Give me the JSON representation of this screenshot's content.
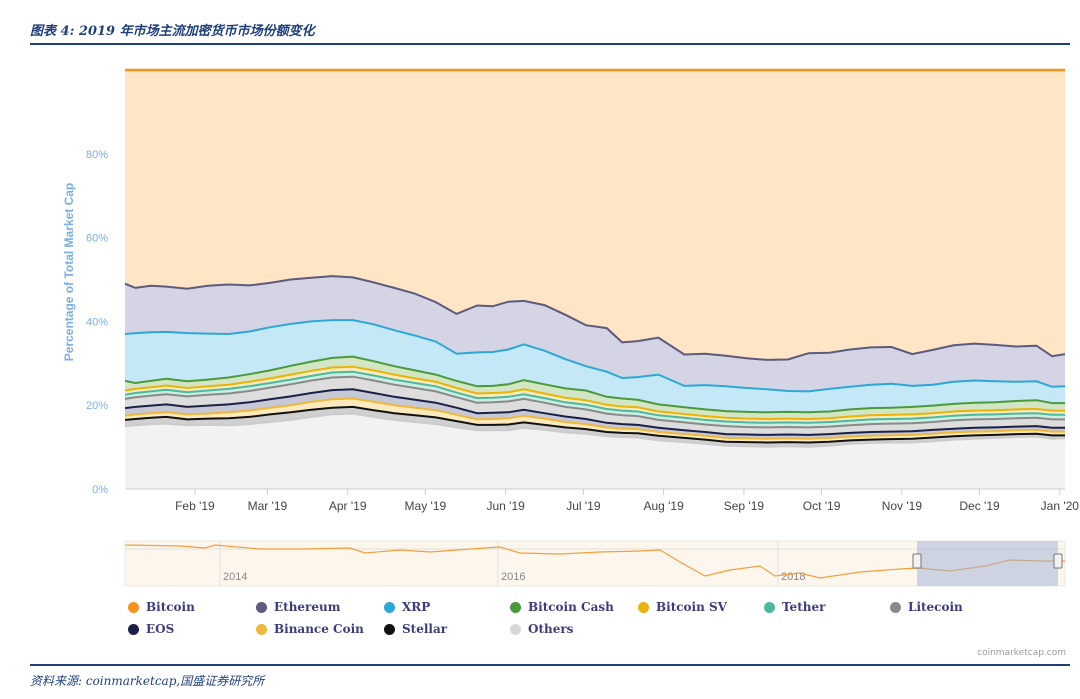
{
  "figure": {
    "title": "图表 4: 2019 年市场主流加密货币市场份额变化",
    "source": "资料来源: coinmarketcap,国盛证券研究所",
    "credit": "coinmarketcap.com"
  },
  "chart_data": {
    "type": "area",
    "stacking": "percent",
    "ylabel": "Percentage of Total Market Cap",
    "ylim": [
      0,
      100
    ],
    "y_ticks": [
      "0%",
      "20%",
      "40%",
      "60%",
      "80%"
    ],
    "y_tick_values": [
      0,
      20,
      40,
      60,
      80
    ],
    "x_ticks": [
      "Feb '19",
      "Mar '19",
      "Apr '19",
      "May '19",
      "Jun '19",
      "Jul '19",
      "Aug '19",
      "Sep '19",
      "Oct '19",
      "Nov '19",
      "Dec '19",
      "Jan '20"
    ],
    "x_tick_days": [
      31,
      59,
      90,
      120,
      151,
      181,
      212,
      243,
      273,
      304,
      334,
      365
    ],
    "x_range_days": [
      4,
      367
    ],
    "grid": "horizontal",
    "legend_position": "bottom",
    "cumulative_top_percent": {
      "x_days": [
        4,
        8,
        14,
        20,
        28,
        36,
        44,
        52,
        60,
        68,
        76,
        84,
        92,
        100,
        108,
        116,
        124,
        132,
        140,
        146,
        152,
        158,
        166,
        174,
        182,
        190,
        196,
        202,
        210,
        220,
        228,
        236,
        244,
        252,
        260,
        268,
        276,
        284,
        292,
        300,
        308,
        316,
        324,
        332,
        340,
        348,
        356,
        362,
        367
      ],
      "Others": [
        15,
        15.2,
        15.5,
        15.6,
        15.2,
        15.3,
        15.2,
        15.5,
        16,
        16.5,
        17.2,
        17.8,
        18,
        17.2,
        16.5,
        16,
        15.5,
        14.7,
        14,
        14,
        14,
        14.6,
        14.1,
        13.5,
        13.2,
        12.6,
        12.4,
        12.3,
        11.6,
        11.2,
        10.8,
        10.3,
        10.2,
        10.1,
        10.2,
        10.1,
        10.3,
        10.8,
        11,
        11.1,
        11.1,
        11.4,
        11.8,
        12,
        12.2,
        12.4,
        12.5,
        12,
        12.1
      ],
      "Stellar": [
        16.5,
        16.7,
        17,
        17.2,
        16.6,
        16.8,
        16.9,
        17.2,
        17.8,
        18.3,
        18.9,
        19.4,
        19.6,
        18.8,
        18.1,
        17.6,
        17.1,
        16.2,
        15.3,
        15.3,
        15.4,
        15.9,
        15.3,
        14.7,
        14.3,
        13.6,
        13.4,
        13.3,
        12.7,
        12.2,
        11.8,
        11.3,
        11.2,
        11.1,
        11.2,
        11.1,
        11.3,
        11.6,
        11.8,
        11.9,
        12,
        12.3,
        12.6,
        12.8,
        12.9,
        13.1,
        13.2,
        12.8,
        12.8
      ],
      "Binance Coin": [
        17.5,
        17.8,
        18.1,
        18.3,
        17.8,
        18,
        18.3,
        18.7,
        19.4,
        20,
        20.8,
        21.4,
        21.6,
        20.8,
        20,
        19.4,
        18.8,
        17.7,
        16.6,
        16.7,
        16.9,
        17.5,
        16.8,
        16,
        15.5,
        14.7,
        14.4,
        14.3,
        13.6,
        13.1,
        12.7,
        12.2,
        12.1,
        12,
        12.1,
        12,
        12.2,
        12.5,
        12.7,
        12.8,
        12.9,
        13.2,
        13.5,
        13.7,
        13.8,
        14,
        14.1,
        13.7,
        13.7
      ],
      "EOS": [
        19.3,
        19.6,
        19.9,
        20.2,
        19.6,
        19.9,
        20.2,
        20.7,
        21.4,
        22.1,
        22.9,
        23.6,
        23.8,
        22.9,
        22,
        21.3,
        20.6,
        19.4,
        18.1,
        18.2,
        18.3,
        18.9,
        18.1,
        17.3,
        16.7,
        15.8,
        15.5,
        15.3,
        14.6,
        14,
        13.6,
        13.1,
        13,
        12.9,
        13,
        12.9,
        13.1,
        13.4,
        13.6,
        13.7,
        13.8,
        14.1,
        14.4,
        14.6,
        14.7,
        14.9,
        15,
        14.6,
        14.6
      ],
      "Litecoin": [
        21.5,
        21.9,
        22.3,
        22.6,
        22.1,
        22.5,
        22.8,
        23.4,
        24.2,
        25,
        25.9,
        26.6,
        26.8,
        25.9,
        24.9,
        24.1,
        23.3,
        21.9,
        20.6,
        20.7,
        20.9,
        21.5,
        20.6,
        19.6,
        19,
        18,
        17.6,
        17.4,
        16.5,
        15.9,
        15.4,
        15,
        14.8,
        14.7,
        14.8,
        14.7,
        14.9,
        15.2,
        15.5,
        15.6,
        15.7,
        16,
        16.4,
        16.6,
        16.7,
        16.9,
        17,
        16.6,
        16.6
      ],
      "Tether": [
        22.5,
        22.9,
        23.3,
        23.7,
        23.1,
        23.5,
        23.9,
        24.5,
        25.3,
        26.1,
        27,
        27.8,
        28,
        27.1,
        26.1,
        25.3,
        24.5,
        23,
        21.7,
        21.8,
        22,
        22.6,
        21.7,
        20.7,
        20.1,
        19.1,
        18.7,
        18.5,
        17.6,
        17,
        16.5,
        16.1,
        15.9,
        15.8,
        15.9,
        15.8,
        16,
        16.3,
        16.6,
        16.7,
        16.8,
        17.1,
        17.5,
        17.7,
        17.8,
        18,
        18.1,
        17.7,
        17.7
      ],
      "Bitcoin SV": [
        23.5,
        23.9,
        24.3,
        24.7,
        24.1,
        24.5,
        24.9,
        25.6,
        26.4,
        27.3,
        28.2,
        29,
        29.2,
        28.3,
        27.3,
        26.4,
        25.6,
        24.1,
        22.8,
        22.9,
        23.1,
        23.8,
        22.8,
        21.8,
        21.2,
        20.1,
        19.7,
        19.5,
        18.5,
        17.9,
        17.4,
        17,
        16.8,
        16.7,
        16.8,
        16.7,
        16.9,
        17.3,
        17.6,
        17.7,
        17.8,
        18.1,
        18.5,
        18.7,
        18.8,
        19,
        19.1,
        18.7,
        18.7
      ],
      "Bitcoin Cash": [
        25.8,
        25.3,
        25.8,
        26.3,
        25.7,
        26.1,
        26.6,
        27.4,
        28.3,
        29.4,
        30.4,
        31.3,
        31.6,
        30.5,
        29.3,
        28.3,
        27.3,
        25.8,
        24.5,
        24.6,
        25,
        26,
        25,
        24,
        23.5,
        22,
        21.6,
        21.3,
        20.2,
        19.5,
        19,
        18.6,
        18.4,
        18.3,
        18.4,
        18.3,
        18.5,
        19,
        19.3,
        19.4,
        19.6,
        19.9,
        20.3,
        20.6,
        20.7,
        21,
        21.2,
        20.5,
        20.5
      ],
      "XRP": [
        37,
        37.2,
        37.4,
        37.5,
        37.2,
        37.1,
        37,
        37.6,
        38.6,
        39.4,
        40,
        40.3,
        40.3,
        39.3,
        37.9,
        36.6,
        35.2,
        32.3,
        32.6,
        32.7,
        33.3,
        34.5,
        33,
        31,
        29.3,
        28,
        26.5,
        26.7,
        27.3,
        24.6,
        24.8,
        24.5,
        24.1,
        23.8,
        23.4,
        23.3,
        23.9,
        24.4,
        24.9,
        25.1,
        24.6,
        24.9,
        25.6,
        25.9,
        25.7,
        25.6,
        25.7,
        24.4,
        24.5
      ],
      "Ethereum": [
        49,
        48,
        48.5,
        48.3,
        47.8,
        48.5,
        48.8,
        48.6,
        49.2,
        50,
        50.4,
        50.8,
        50.5,
        49.3,
        48,
        46.6,
        44.6,
        41.8,
        43.8,
        43.6,
        44.7,
        44.9,
        43.9,
        41.6,
        39.1,
        38.4,
        35,
        35.3,
        36.1,
        32.1,
        32.3,
        31.8,
        31.2,
        30.8,
        30.9,
        32.4,
        32.5,
        33.3,
        33.8,
        33.9,
        32.2,
        33.2,
        34.3,
        34.7,
        34.4,
        34,
        34.2,
        31.7,
        32.2
      ],
      "Bitcoin": [
        100,
        100,
        100,
        100,
        100,
        100,
        100,
        100,
        100,
        100,
        100,
        100,
        100,
        100,
        100,
        100,
        100,
        100,
        100,
        100,
        100,
        100,
        100,
        100,
        100,
        100,
        100,
        100,
        100,
        100,
        100,
        100,
        100,
        100,
        100,
        100,
        100,
        100,
        100,
        100,
        100,
        100,
        100,
        100,
        100,
        100,
        100,
        100,
        100
      ]
    },
    "series": [
      {
        "name": "Bitcoin",
        "color": "#f7931a",
        "fill": "#fde5c6"
      },
      {
        "name": "Ethereum",
        "color": "#5c5a7d",
        "fill": "#d4d4e4"
      },
      {
        "name": "XRP",
        "color": "#2ca8d8",
        "fill": "#c4e8f6"
      },
      {
        "name": "Bitcoin Cash",
        "color": "#4a9a3a",
        "fill": "#d2e6c6"
      },
      {
        "name": "Bitcoin SV",
        "color": "#eab308",
        "fill": "#faecbf"
      },
      {
        "name": "Tether",
        "color": "#4cb8a0",
        "fill": "#cceee2"
      },
      {
        "name": "Litecoin",
        "color": "#8a8a8a",
        "fill": "#dddddd"
      },
      {
        "name": "EOS",
        "color": "#1a2048",
        "fill": "#c6c8d6"
      },
      {
        "name": "Binance Coin",
        "color": "#f0b83a",
        "fill": "#fbeabe"
      },
      {
        "name": "Stellar",
        "color": "#111111",
        "fill": "#d0d0d0"
      },
      {
        "name": "Others",
        "color": "#cccccc",
        "fill": "#f2f2f2"
      }
    ],
    "navigator": {
      "x_ticks": [
        "2014",
        "2016",
        "2018"
      ]
    }
  }
}
